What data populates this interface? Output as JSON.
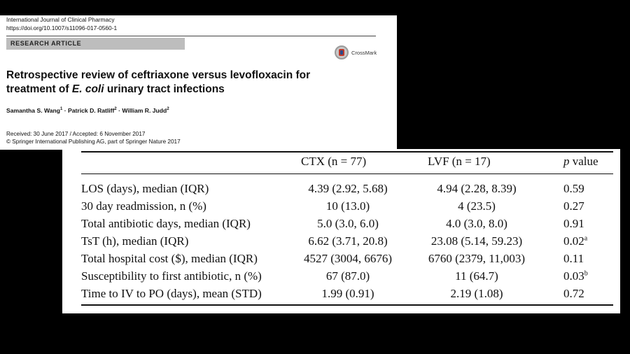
{
  "paper": {
    "journal": "International Journal of Clinical Pharmacy",
    "doi": "https://doi.org/10.1007/s11096-017-0560-1",
    "section_label": "RESEARCH ARTICLE",
    "crossmark_label": "CrossMark",
    "title_part1": "Retrospective review of ceftriaxone versus levofloxacin for treatment of ",
    "title_italic": "E. coli",
    "title_part2": " urinary tract infections",
    "authors": [
      {
        "name": "Samantha S. Wang",
        "affil": "1"
      },
      {
        "name": "Patrick D. Ratliff",
        "affil": "2"
      },
      {
        "name": "William R. Judd",
        "affil": "2"
      }
    ],
    "author_separator": " · ",
    "received": "Received: 30 June 2017 / Accepted: 6 November 2017",
    "copyright": "© Springer International Publishing AG, part of Springer Nature 2017"
  },
  "table": {
    "headers": {
      "ctx": "CTX (n = 77)",
      "lvf": "LVF (n = 17)",
      "p_italic": "p",
      "p_rest": " value"
    },
    "rows": [
      {
        "label": "LOS (days), median (IQR)",
        "ctx": "4.39 (2.92, 5.68)",
        "lvf": "4.94 (2.28, 8.39)",
        "p": "0.59",
        "p_note": ""
      },
      {
        "label": "30 day readmission, n (%)",
        "ctx": "10 (13.0)",
        "lvf": "4 (23.5)",
        "p": "0.27",
        "p_note": ""
      },
      {
        "label": "Total antibiotic days, median (IQR)",
        "ctx": "5.0 (3.0, 6.0)",
        "lvf": "4.0 (3.0, 8.0)",
        "p": "0.91",
        "p_note": ""
      },
      {
        "label": "TsT (h), median (IQR)",
        "ctx": "6.62 (3.71, 20.8)",
        "lvf": "23.08 (5.14, 59.23)",
        "p": "0.02",
        "p_note": "a"
      },
      {
        "label": "Total hospital cost ($), median (IQR)",
        "ctx": "4527 (3004, 6676)",
        "lvf": "6760 (2379, 11,003)",
        "p": "0.11",
        "p_note": ""
      },
      {
        "label": "Susceptibility to first antibiotic, n (%)",
        "ctx": "67 (87.0)",
        "lvf": "11 (64.7)",
        "p": "0.03",
        "p_note": "b"
      },
      {
        "label": "Time to IV to PO (days), mean (STD)",
        "ctx": "1.99 (0.91)",
        "lvf": "2.19 (1.08)",
        "p": "0.72",
        "p_note": ""
      }
    ]
  }
}
